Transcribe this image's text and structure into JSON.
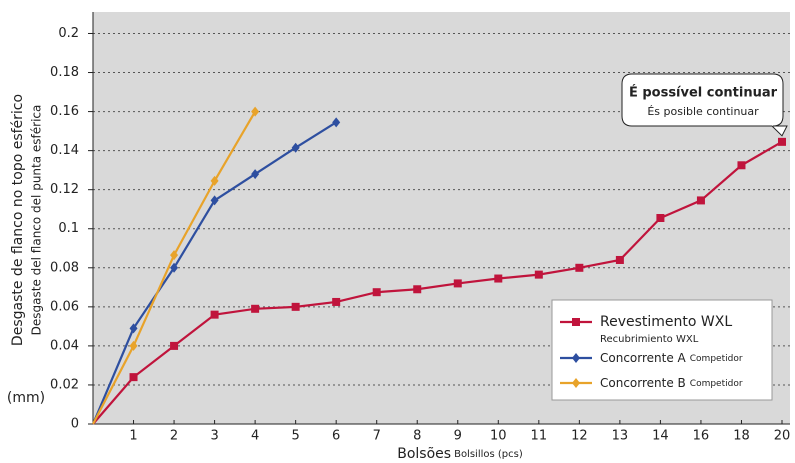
{
  "chart_data": {
    "type": "line",
    "y_title": "Desgaste de flanco no topo esférico",
    "y_subtitle": "Desgaste del flanco del punta esférica",
    "y_unit": "(mm)",
    "x_title": "Bolsões",
    "x_subtitle": "Bolsillos (pcs)",
    "annotation": {
      "title": "É possível continuar",
      "subtitle": "És posible continuar"
    },
    "categories": [
      null,
      "1",
      "2",
      "3",
      "4",
      "5",
      "6",
      "7",
      "8",
      "9",
      "10",
      "11",
      "12",
      "13",
      "14",
      "16",
      "18",
      "20"
    ],
    "series": [
      {
        "name": "Revestimento WXL",
        "subname": "Recubrimiento WXL",
        "color": "#c0143c",
        "marker": "square",
        "values": [
          0,
          0.024,
          0.04,
          0.056,
          0.059,
          0.06,
          0.0625,
          0.0675,
          0.069,
          0.072,
          0.0745,
          0.0765,
          0.08,
          0.084,
          0.1055,
          0.1145,
          0.1325,
          0.1445
        ]
      },
      {
        "name": "Concorrente A",
        "subname": "Competidor",
        "color": "#2e4fa0",
        "marker": "diamond",
        "values": [
          0,
          0.049,
          0.08,
          0.1145,
          0.128,
          0.1415,
          0.1545,
          null,
          null,
          null,
          null,
          null,
          null,
          null,
          null,
          null,
          null,
          null
        ]
      },
      {
        "name": "Concorrente B",
        "subname": "Competidor",
        "color": "#e8a32a",
        "marker": "diamond",
        "values": [
          0,
          0.04,
          0.0865,
          0.1245,
          0.16,
          null,
          null,
          null,
          null,
          null,
          null,
          null,
          null,
          null,
          null,
          null,
          null,
          null
        ]
      }
    ],
    "ylim": [
      0,
      0.211
    ],
    "yticks": [
      0,
      0.02,
      0.04,
      0.06,
      0.08,
      0.1,
      0.12,
      0.14,
      0.16,
      0.18,
      0.2
    ],
    "grid": true,
    "legend": "lower-right"
  }
}
